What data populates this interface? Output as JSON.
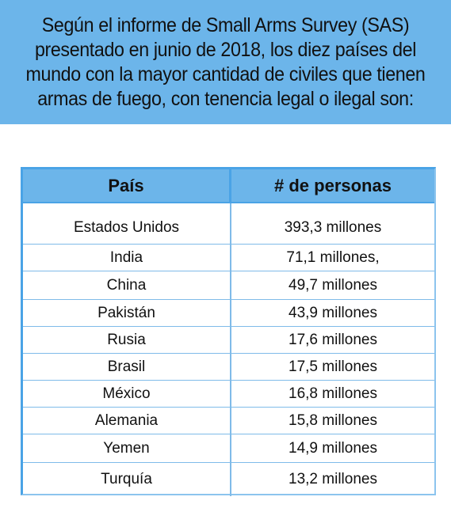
{
  "banner": {
    "text": "Según el informe de Small Arms Survey (SAS) presentado en junio de 2018, los diez países del mundo con la mayor cantidad de civiles que tienen armas de fuego, con tenencia legal o ilegal son:"
  },
  "table": {
    "headers": [
      "País",
      "# de personas"
    ],
    "rows": [
      {
        "country": "Estados Unidos",
        "people": "393,3 millones"
      },
      {
        "country": "India",
        "people": "71,1 millones,"
      },
      {
        "country": "China",
        "people": "49,7 millones"
      },
      {
        "country": "Pakistán",
        "people": "43,9 millones"
      },
      {
        "country": "Rusia",
        "people": "17,6 millones"
      },
      {
        "country": "Brasil",
        "people": "17,5 millones"
      },
      {
        "country": "México",
        "people": "16,8 millones"
      },
      {
        "country": "Alemania",
        "people": "15,8 millones"
      },
      {
        "country": "Yemen",
        "people": "14,9 millones"
      },
      {
        "country": "Turquía",
        "people": "13,2 millones"
      }
    ]
  },
  "colors": {
    "accent": "#6cb5ea",
    "border": "#4aa3e6"
  }
}
